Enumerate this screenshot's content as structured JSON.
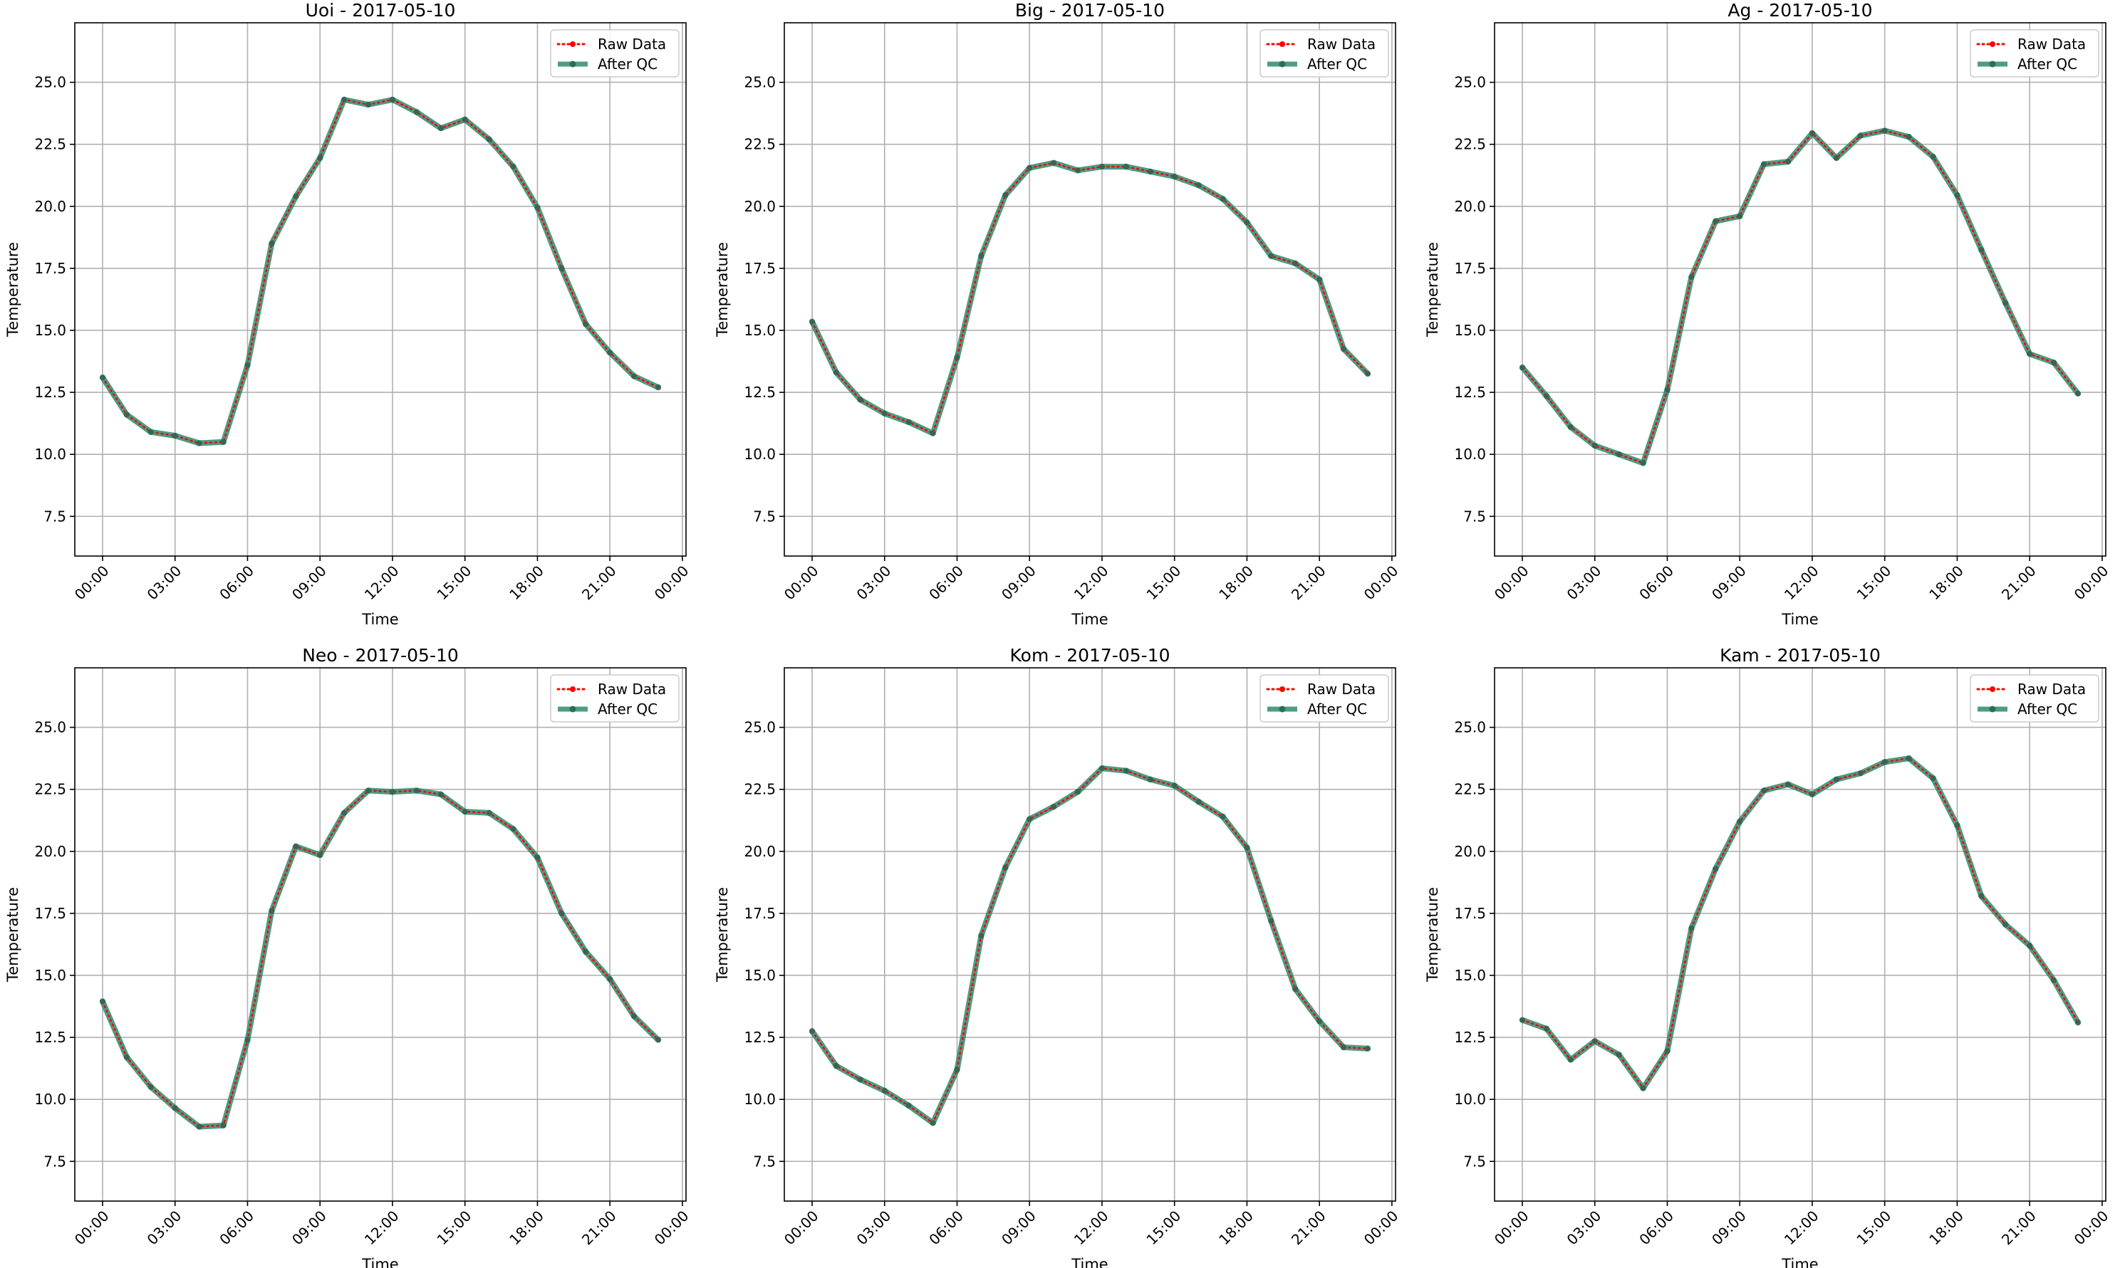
{
  "x_ticks": [
    "00:00",
    "03:00",
    "06:00",
    "09:00",
    "12:00",
    "15:00",
    "18:00",
    "21:00",
    "00:00"
  ],
  "y_ticks": [
    "7.5",
    "10.0",
    "12.5",
    "15.0",
    "17.5",
    "20.0",
    "22.5",
    "25.0"
  ],
  "xlabel": "Time",
  "ylabel": "Temperature",
  "legend": {
    "raw": "Raw Data",
    "qc": "After QC"
  },
  "colors": {
    "raw": "#ff0000",
    "qc": "#2e8b6e",
    "qc_marker": "#2a6d59",
    "grid": "#b0b0b0"
  },
  "chart_data": [
    {
      "type": "line",
      "title": "Uoi - 2017-05-10",
      "xlabel": "Time",
      "ylabel": "Temperature",
      "xlim": [
        -1.15,
        24.15
      ],
      "ylim": [
        5.9,
        27.4
      ],
      "x": [
        0,
        1,
        2,
        3,
        4,
        5,
        6,
        7,
        8,
        9,
        10,
        11,
        12,
        13,
        14,
        15,
        16,
        17,
        18,
        19,
        20,
        21,
        22,
        23
      ],
      "series": [
        {
          "name": "Raw Data",
          "values": [
            13.1,
            11.6,
            10.9,
            10.75,
            10.45,
            10.5,
            13.6,
            18.5,
            20.4,
            21.95,
            24.3,
            24.1,
            24.3,
            23.8,
            23.15,
            23.5,
            22.7,
            21.6,
            19.95,
            17.5,
            15.25,
            14.1,
            13.15,
            12.7
          ]
        },
        {
          "name": "After QC",
          "values": [
            13.1,
            11.6,
            10.9,
            10.75,
            10.45,
            10.5,
            13.6,
            18.5,
            20.4,
            21.95,
            24.3,
            24.1,
            24.3,
            23.8,
            23.15,
            23.5,
            22.7,
            21.6,
            19.95,
            17.5,
            15.25,
            14.1,
            13.15,
            12.7
          ]
        }
      ],
      "x_ticks": [
        "00:00",
        "03:00",
        "06:00",
        "09:00",
        "12:00",
        "15:00",
        "18:00",
        "21:00",
        "00:00"
      ],
      "grid": true,
      "legend": "top-right"
    },
    {
      "type": "line",
      "title": "Big - 2017-05-10",
      "xlabel": "Time",
      "ylabel": "Temperature",
      "xlim": [
        -1.15,
        24.15
      ],
      "ylim": [
        5.9,
        27.4
      ],
      "x": [
        0,
        1,
        2,
        3,
        4,
        5,
        6,
        7,
        8,
        9,
        10,
        11,
        12,
        13,
        14,
        15,
        16,
        17,
        18,
        19,
        20,
        21,
        22,
        23
      ],
      "series": [
        {
          "name": "Raw Data",
          "values": [
            15.35,
            13.3,
            12.2,
            11.65,
            11.3,
            10.85,
            13.9,
            18.0,
            20.45,
            21.55,
            21.75,
            21.45,
            21.6,
            21.6,
            21.4,
            21.2,
            20.85,
            20.3,
            19.35,
            18.0,
            17.7,
            17.05,
            14.25,
            13.25
          ]
        },
        {
          "name": "After QC",
          "values": [
            15.35,
            13.3,
            12.2,
            11.65,
            11.3,
            10.85,
            13.9,
            18.0,
            20.45,
            21.55,
            21.75,
            21.45,
            21.6,
            21.6,
            21.4,
            21.2,
            20.85,
            20.3,
            19.35,
            18.0,
            17.7,
            17.05,
            14.25,
            13.25
          ]
        }
      ],
      "x_ticks": [
        "00:00",
        "03:00",
        "06:00",
        "09:00",
        "12:00",
        "15:00",
        "18:00",
        "21:00",
        "00:00"
      ],
      "grid": true,
      "legend": "top-right"
    },
    {
      "type": "line",
      "title": "Ag - 2017-05-10",
      "xlabel": "Time",
      "ylabel": "Temperature",
      "xlim": [
        -1.15,
        24.15
      ],
      "ylim": [
        5.9,
        27.4
      ],
      "x": [
        0,
        1,
        2,
        3,
        4,
        5,
        6,
        7,
        8,
        9,
        10,
        11,
        12,
        13,
        14,
        15,
        16,
        17,
        18,
        19,
        20,
        21,
        22,
        23
      ],
      "series": [
        {
          "name": "Raw Data",
          "values": [
            13.5,
            12.35,
            11.1,
            10.35,
            10.0,
            9.65,
            12.6,
            17.15,
            19.4,
            19.6,
            21.7,
            21.8,
            22.95,
            21.95,
            22.85,
            23.05,
            22.8,
            22.0,
            20.45,
            18.25,
            16.1,
            14.05,
            13.7,
            12.45
          ]
        },
        {
          "name": "After QC",
          "values": [
            13.5,
            12.35,
            11.1,
            10.35,
            10.0,
            9.65,
            12.6,
            17.15,
            19.4,
            19.6,
            21.7,
            21.8,
            22.95,
            21.95,
            22.85,
            23.05,
            22.8,
            22.0,
            20.45,
            18.25,
            16.1,
            14.05,
            13.7,
            12.45
          ]
        }
      ],
      "x_ticks": [
        "00:00",
        "03:00",
        "06:00",
        "09:00",
        "12:00",
        "15:00",
        "18:00",
        "21:00",
        "00:00"
      ],
      "grid": true,
      "legend": "top-right"
    },
    {
      "type": "line",
      "title": "Neo - 2017-05-10",
      "xlabel": "Time",
      "ylabel": "Temperature",
      "xlim": [
        -1.15,
        24.15
      ],
      "ylim": [
        5.9,
        27.4
      ],
      "x": [
        0,
        1,
        2,
        3,
        4,
        5,
        6,
        7,
        8,
        9,
        10,
        11,
        12,
        13,
        14,
        15,
        16,
        17,
        18,
        19,
        20,
        21,
        22,
        23
      ],
      "series": [
        {
          "name": "Raw Data",
          "values": [
            13.95,
            11.7,
            10.5,
            9.65,
            8.9,
            8.95,
            12.4,
            17.6,
            20.2,
            19.85,
            21.55,
            22.45,
            22.4,
            22.45,
            22.3,
            21.6,
            21.55,
            20.9,
            19.75,
            17.5,
            15.95,
            14.85,
            13.35,
            12.4
          ]
        },
        {
          "name": "After QC",
          "values": [
            13.95,
            11.7,
            10.5,
            9.65,
            8.9,
            8.95,
            12.4,
            17.6,
            20.2,
            19.85,
            21.55,
            22.45,
            22.4,
            22.45,
            22.3,
            21.6,
            21.55,
            20.9,
            19.75,
            17.5,
            15.95,
            14.85,
            13.35,
            12.4
          ]
        }
      ],
      "x_ticks": [
        "00:00",
        "03:00",
        "06:00",
        "09:00",
        "12:00",
        "15:00",
        "18:00",
        "21:00",
        "00:00"
      ],
      "grid": true,
      "legend": "top-right"
    },
    {
      "type": "line",
      "title": "Kom - 2017-05-10",
      "xlabel": "Time",
      "ylabel": "Temperature",
      "xlim": [
        -1.15,
        24.15
      ],
      "ylim": [
        5.9,
        27.4
      ],
      "x": [
        0,
        1,
        2,
        3,
        4,
        5,
        6,
        7,
        8,
        9,
        10,
        11,
        12,
        13,
        14,
        15,
        16,
        17,
        18,
        19,
        20,
        21,
        22,
        23
      ],
      "series": [
        {
          "name": "Raw Data",
          "values": [
            12.75,
            11.35,
            10.8,
            10.35,
            9.75,
            9.05,
            11.2,
            16.6,
            19.35,
            21.3,
            21.8,
            22.4,
            23.35,
            23.25,
            22.9,
            22.65,
            22.0,
            21.4,
            20.15,
            17.2,
            14.45,
            13.15,
            12.1,
            12.05
          ]
        },
        {
          "name": "After QC",
          "values": [
            12.75,
            11.35,
            10.8,
            10.35,
            9.75,
            9.05,
            11.2,
            16.6,
            19.35,
            21.3,
            21.8,
            22.4,
            23.35,
            23.25,
            22.9,
            22.65,
            22.0,
            21.4,
            20.15,
            17.2,
            14.45,
            13.15,
            12.1,
            12.05
          ]
        }
      ],
      "x_ticks": [
        "00:00",
        "03:00",
        "06:00",
        "09:00",
        "12:00",
        "15:00",
        "18:00",
        "21:00",
        "00:00"
      ],
      "grid": true,
      "legend": "top-right"
    },
    {
      "type": "line",
      "title": "Kam - 2017-05-10",
      "xlabel": "Time",
      "ylabel": "Temperature",
      "xlim": [
        -1.15,
        24.15
      ],
      "ylim": [
        5.9,
        27.4
      ],
      "x": [
        0,
        1,
        2,
        3,
        4,
        5,
        6,
        7,
        8,
        9,
        10,
        11,
        12,
        13,
        14,
        15,
        16,
        17,
        18,
        19,
        20,
        21,
        22,
        23
      ],
      "series": [
        {
          "name": "Raw Data",
          "values": [
            13.2,
            12.85,
            11.6,
            12.35,
            11.8,
            10.45,
            11.95,
            16.9,
            19.3,
            21.2,
            22.45,
            22.7,
            22.3,
            22.9,
            23.15,
            23.6,
            23.75,
            22.95,
            21.05,
            18.2,
            17.05,
            16.2,
            14.8,
            13.1
          ]
        },
        {
          "name": "After QC",
          "values": [
            13.2,
            12.85,
            11.6,
            12.35,
            11.8,
            10.45,
            11.95,
            16.9,
            19.3,
            21.2,
            22.45,
            22.7,
            22.3,
            22.9,
            23.15,
            23.6,
            23.75,
            22.95,
            21.05,
            18.2,
            17.05,
            16.2,
            14.8,
            13.1
          ]
        }
      ],
      "x_ticks": [
        "00:00",
        "03:00",
        "06:00",
        "09:00",
        "12:00",
        "15:00",
        "18:00",
        "21:00",
        "00:00"
      ],
      "grid": true,
      "legend": "top-right"
    }
  ]
}
